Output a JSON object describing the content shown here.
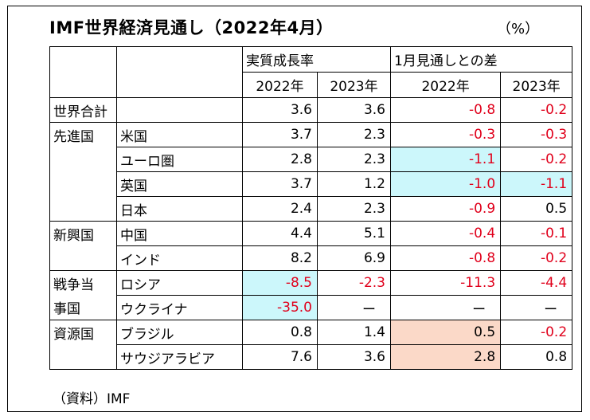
{
  "title": "IMF世界経済見通し（2022年4月）",
  "unit": "（%）",
  "source": "（資料）IMF",
  "headers": {
    "group1": "実質成長率",
    "group2": "1月見通しとの差",
    "y1": "2022年",
    "y2": "2023年",
    "y3": "2022年",
    "y4": "2023年"
  },
  "regions": {
    "world": "世界合計",
    "advanced": "先進国",
    "emerging": "新興国",
    "war1": "戦争当",
    "war2": "事国",
    "resource": "資源国"
  },
  "rows": [
    {
      "country": "",
      "v1": "3.6",
      "v2": "3.6",
      "v3": "-0.8",
      "v4": "-0.2"
    },
    {
      "country": "米国",
      "v1": "3.7",
      "v2": "2.3",
      "v3": "-0.3",
      "v4": "-0.3"
    },
    {
      "country": "ユーロ圏",
      "v1": "2.8",
      "v2": "2.3",
      "v3": "-1.1",
      "v4": "-0.2"
    },
    {
      "country": "英国",
      "v1": "3.7",
      "v2": "1.2",
      "v3": "-1.0",
      "v4": "-1.1"
    },
    {
      "country": "日本",
      "v1": "2.4",
      "v2": "2.3",
      "v3": "-0.9",
      "v4": "0.5"
    },
    {
      "country": "中国",
      "v1": "4.4",
      "v2": "5.1",
      "v3": "-0.4",
      "v4": "-0.1"
    },
    {
      "country": "インド",
      "v1": "8.2",
      "v2": "6.9",
      "v3": "-0.8",
      "v4": "-0.2"
    },
    {
      "country": "ロシア",
      "v1": "-8.5",
      "v2": "-2.3",
      "v3": "-11.3",
      "v4": "-4.4"
    },
    {
      "country": "ウクライナ",
      "v1": "-35.0",
      "v2": "ー",
      "v3": "ー",
      "v4": "ー"
    },
    {
      "country": "ブラジル",
      "v1": "0.8",
      "v2": "1.4",
      "v3": "0.5",
      "v4": "-0.2"
    },
    {
      "country": "サウジアラビア",
      "v1": "7.6",
      "v2": "3.6",
      "v3": "2.8",
      "v4": "0.8"
    }
  ],
  "colors": {
    "negative": "#e0001b",
    "highlight_blue": "#ccf7fb",
    "highlight_orange": "#fbd9c8"
  }
}
